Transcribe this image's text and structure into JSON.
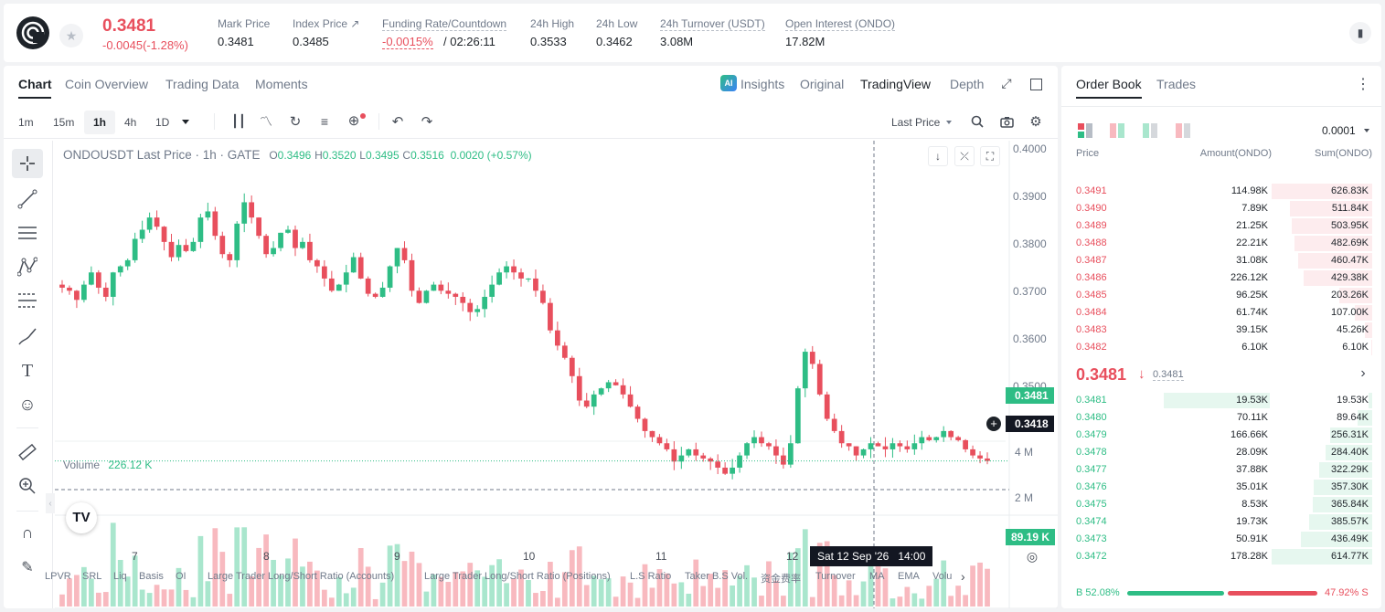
{
  "ticker": {
    "price": "0.3481",
    "change": "-0.0045(-1.28%)",
    "stats": [
      {
        "label": "Mark Price",
        "value": "0.3481"
      },
      {
        "label": "Index Price ↗",
        "value": "0.3485"
      },
      {
        "label": "Funding Rate/Countdown",
        "value": "-0.0015%",
        "value2": "/ 02:26:11"
      },
      {
        "label": "24h High",
        "value": "0.3533"
      },
      {
        "label": "24h Low",
        "value": "0.3462"
      },
      {
        "label": "24h Turnover (USDT)",
        "value": "3.08M"
      },
      {
        "label": "Open Interest (ONDO)",
        "value": "17.82M"
      }
    ]
  },
  "chart_tabs": [
    "Chart",
    "Coin Overview",
    "Trading Data",
    "Moments"
  ],
  "view_tabs": {
    "insights": "Insights",
    "original": "Original",
    "tradingview": "TradingView",
    "depth": "Depth"
  },
  "intervals": [
    "1m",
    "15m",
    "1h",
    "4h",
    "1D"
  ],
  "price_source": "Last Price",
  "legend": {
    "symbol": "ONDOUSDT Last Price · 1h · GATE",
    "o_label": "O",
    "o": "0.3496",
    "h_label": "H",
    "h": "0.3520",
    "l_label": "L",
    "l": "0.3495",
    "c_label": "C",
    "c": "0.3516",
    "chg": "0.0020 (+0.57%)"
  },
  "volume": {
    "label": "Volume",
    "value": "226.12 K"
  },
  "y_ticks": [
    "0.4000",
    "0.3900",
    "0.3800",
    "0.3700",
    "0.3600",
    "0.3500"
  ],
  "vol_ticks": [
    "4 M",
    "2 M"
  ],
  "x_ticks": [
    "7",
    "8",
    "9",
    "10",
    "11",
    "12"
  ],
  "last_price_tag": "0.3481",
  "cursor_price_tag": "0.3418",
  "vol_tag": "89.19 K",
  "cursor_time": "Sat 12 Sep '26   14:00",
  "indicators": [
    "LPVR",
    "SRL",
    "Liq",
    "Basis",
    "OI",
    "Large Trader Long/Short Ratio (Accounts)",
    "Large Trader Long/Short Ratio (Positions)",
    "L.S Ratio",
    "Taker B.S Vol.",
    "资金费率",
    "Turnover",
    "MA",
    "EMA",
    "Volu"
  ],
  "orderbook": {
    "tabs": [
      "Order Book",
      "Trades"
    ],
    "precision": "0.0001",
    "headers": [
      "Price",
      "Amount(ONDO)",
      "Sum(ONDO)"
    ],
    "asks": [
      [
        "0.3491",
        "114.98K",
        "626.83K"
      ],
      [
        "0.3490",
        "7.89K",
        "511.84K"
      ],
      [
        "0.3489",
        "21.25K",
        "503.95K"
      ],
      [
        "0.3488",
        "22.21K",
        "482.69K"
      ],
      [
        "0.3487",
        "31.08K",
        "460.47K"
      ],
      [
        "0.3486",
        "226.12K",
        "429.38K"
      ],
      [
        "0.3485",
        "96.25K",
        "203.26K"
      ],
      [
        "0.3484",
        "61.74K",
        "107.00K"
      ],
      [
        "0.3483",
        "39.15K",
        "45.26K"
      ],
      [
        "0.3482",
        "6.10K",
        "6.10K"
      ]
    ],
    "asks_depth": [
      1.0,
      0.816,
      0.804,
      0.77,
      0.735,
      0.685,
      0.324,
      0.171,
      0.072,
      0.01
    ],
    "mid_price": "0.3481",
    "mid_mark": "0.3481",
    "bids": [
      [
        "0.3481",
        "19.53K",
        "19.53K"
      ],
      [
        "0.3480",
        "70.11K",
        "89.64K"
      ],
      [
        "0.3479",
        "166.66K",
        "256.31K"
      ],
      [
        "0.3478",
        "28.09K",
        "284.40K"
      ],
      [
        "0.3477",
        "37.88K",
        "322.29K"
      ],
      [
        "0.3476",
        "35.01K",
        "357.30K"
      ],
      [
        "0.3475",
        "8.53K",
        "365.84K"
      ],
      [
        "0.3474",
        "19.73K",
        "385.57K"
      ],
      [
        "0.3473",
        "50.91K",
        "436.49K"
      ],
      [
        "0.3472",
        "178.28K",
        "614.77K"
      ]
    ],
    "bids_depth": [
      0.032,
      0.146,
      0.417,
      0.463,
      0.524,
      0.581,
      0.595,
      0.627,
      0.71,
      1.0
    ],
    "buy_ratio": "52.08%",
    "sell_ratio": "47.92%",
    "buy_label": "B",
    "sell_label": "S",
    "buy_fraction": 0.5208
  },
  "chart_data": {
    "type": "candlestick",
    "symbol": "ONDOUSDT",
    "interval": "1h",
    "ylim": [
      0.344,
      0.4
    ],
    "close_series": [
      0.3765,
      0.376,
      0.3745,
      0.377,
      0.379,
      0.3765,
      0.375,
      0.379,
      0.38,
      0.381,
      0.3845,
      0.386,
      0.388,
      0.3865,
      0.384,
      0.3815,
      0.3835,
      0.3825,
      0.384,
      0.388,
      0.389,
      0.385,
      0.382,
      0.381,
      0.387,
      0.3905,
      0.388,
      0.385,
      0.382,
      0.383,
      0.3855,
      0.386,
      0.383,
      0.384,
      0.381,
      0.38,
      0.378,
      0.376,
      0.377,
      0.379,
      0.3815,
      0.378,
      0.3755,
      0.375,
      0.3765,
      0.38,
      0.383,
      0.381,
      0.376,
      0.374,
      0.376,
      0.377,
      0.376,
      0.3755,
      0.375,
      0.374,
      0.3725,
      0.373,
      0.375,
      0.377,
      0.379,
      0.38,
      0.379,
      0.378,
      0.378,
      0.376,
      0.374,
      0.3695,
      0.367,
      0.365,
      0.362,
      0.358,
      0.357,
      0.359,
      0.36,
      0.361,
      0.3605,
      0.359,
      0.357,
      0.355,
      0.353,
      0.352,
      0.351,
      0.35,
      0.348,
      0.349,
      0.35,
      0.349,
      0.3485,
      0.348,
      0.347,
      0.346,
      0.347,
      0.349,
      0.351,
      0.352,
      0.351,
      0.3505,
      0.349,
      0.3475,
      0.351,
      0.36,
      0.366,
      0.364,
      0.359,
      0.355,
      0.353,
      0.351,
      0.3505,
      0.349,
      0.35,
      0.351,
      0.3505,
      0.35,
      0.351,
      0.3505,
      0.35,
      0.351,
      0.352,
      0.3515,
      0.352,
      0.353,
      0.352,
      0.3515,
      0.35,
      0.349,
      0.3485,
      0.3481
    ],
    "last_price": 0.3481
  }
}
